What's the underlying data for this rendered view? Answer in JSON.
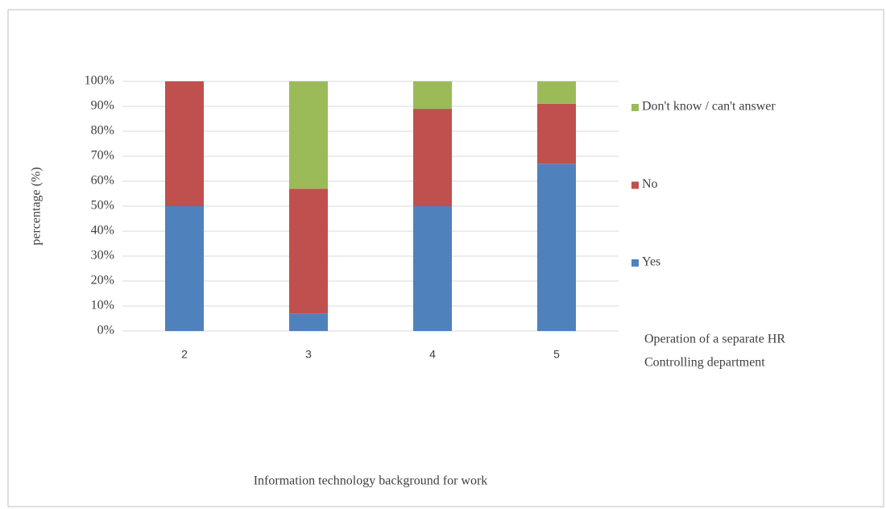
{
  "chart_data": {
    "type": "stacked_bar",
    "categories": [
      "2",
      "3",
      "4",
      "5"
    ],
    "series": [
      {
        "name": "Yes",
        "color": "#4f81bd",
        "values": [
          50,
          7,
          50,
          67
        ]
      },
      {
        "name": "No",
        "color": "#c0504d",
        "values": [
          50,
          50,
          39,
          24
        ]
      },
      {
        "name": "Don't know / can't answer",
        "color": "#9bbb59",
        "values": [
          0,
          43,
          11,
          9
        ]
      }
    ],
    "ylim": [
      0,
      100
    ],
    "yticks": [
      {
        "value": 0,
        "label": "0%"
      },
      {
        "value": 10,
        "label": "10%"
      },
      {
        "value": 20,
        "label": "20%"
      },
      {
        "value": 30,
        "label": "30%"
      },
      {
        "value": 40,
        "label": "40%"
      },
      {
        "value": 50,
        "label": "50%"
      },
      {
        "value": 60,
        "label": "60%"
      },
      {
        "value": 70,
        "label": "70%"
      },
      {
        "value": 80,
        "label": "80%"
      },
      {
        "value": 90,
        "label": "90%"
      },
      {
        "value": 100,
        "label": "100%"
      }
    ],
    "grid": true,
    "y_label": "percentage (%)",
    "x_label": "Information technology background for work",
    "legend_title": [
      "Operation of a separate HR",
      "Controlling department"
    ],
    "legend_position": "right"
  }
}
